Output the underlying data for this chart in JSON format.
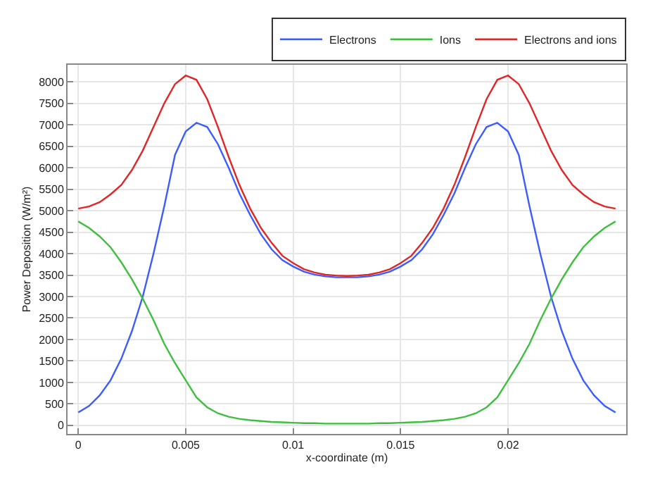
{
  "chart_data": {
    "type": "line",
    "xlabel": "x-coordinate (m)",
    "ylabel": "Power Deposition (W/m²)",
    "x": [
      0,
      0.0005,
      0.001,
      0.0015,
      0.002,
      0.0025,
      0.003,
      0.0035,
      0.004,
      0.0045,
      0.005,
      0.0055,
      0.006,
      0.0065,
      0.007,
      0.0075,
      0.008,
      0.0085,
      0.009,
      0.0095,
      0.01,
      0.0105,
      0.011,
      0.0115,
      0.012,
      0.0125,
      0.013,
      0.0135,
      0.014,
      0.0145,
      0.015,
      0.0155,
      0.016,
      0.0165,
      0.017,
      0.0175,
      0.018,
      0.0185,
      0.019,
      0.0195,
      0.02,
      0.0205,
      0.021,
      0.0215,
      0.022,
      0.0225,
      0.023,
      0.0235,
      0.024,
      0.0245,
      0.025
    ],
    "series": [
      {
        "name": "Electrons",
        "color": "#3b5cff",
        "values": [
          300,
          450,
          700,
          1050,
          1550,
          2200,
          3000,
          4000,
          5100,
          6300,
          6850,
          7050,
          6950,
          6550,
          6000,
          5400,
          4900,
          4450,
          4100,
          3850,
          3700,
          3580,
          3510,
          3470,
          3450,
          3450,
          3450,
          3470,
          3510,
          3580,
          3700,
          3850,
          4100,
          4450,
          4900,
          5400,
          6000,
          6550,
          6950,
          7050,
          6850,
          6300,
          5100,
          4000,
          3000,
          2200,
          1550,
          1050,
          700,
          450,
          300
        ]
      },
      {
        "name": "Ions",
        "color": "#3fbf3f",
        "values": [
          4750,
          4600,
          4400,
          4150,
          3800,
          3400,
          2950,
          2450,
          1900,
          1450,
          1050,
          650,
          420,
          280,
          200,
          150,
          120,
          100,
          80,
          70,
          60,
          50,
          50,
          40,
          40,
          40,
          40,
          40,
          50,
          50,
          60,
          70,
          80,
          100,
          120,
          150,
          200,
          280,
          420,
          650,
          1050,
          1450,
          1900,
          2450,
          2950,
          3400,
          3800,
          4150,
          4400,
          4600,
          4750
        ]
      },
      {
        "name": "Electrons and ions",
        "color": "#e02626",
        "values": [
          5050,
          5100,
          5200,
          5380,
          5600,
          5950,
          6400,
          6950,
          7500,
          7950,
          8150,
          8050,
          7600,
          6950,
          6250,
          5600,
          5050,
          4600,
          4250,
          3950,
          3780,
          3640,
          3560,
          3510,
          3490,
          3480,
          3490,
          3510,
          3560,
          3640,
          3780,
          3950,
          4250,
          4600,
          5050,
          5600,
          6250,
          6950,
          7600,
          8050,
          8150,
          7950,
          7500,
          6950,
          6400,
          5950,
          5600,
          5380,
          5200,
          5100,
          5050
        ]
      }
    ],
    "xlim": [
      -0.0005,
      0.0255
    ],
    "ylim": [
      -200,
      8400
    ],
    "xticks": [
      0,
      0.005,
      0.01,
      0.015,
      0.02
    ],
    "yticks": [
      0,
      500,
      1000,
      1500,
      2000,
      2500,
      3000,
      3500,
      4000,
      4500,
      5000,
      5500,
      6000,
      6500,
      7000,
      7500,
      8000
    ],
    "grid": true,
    "legend": "top right",
    "marker": "none",
    "line_style": "solid"
  }
}
